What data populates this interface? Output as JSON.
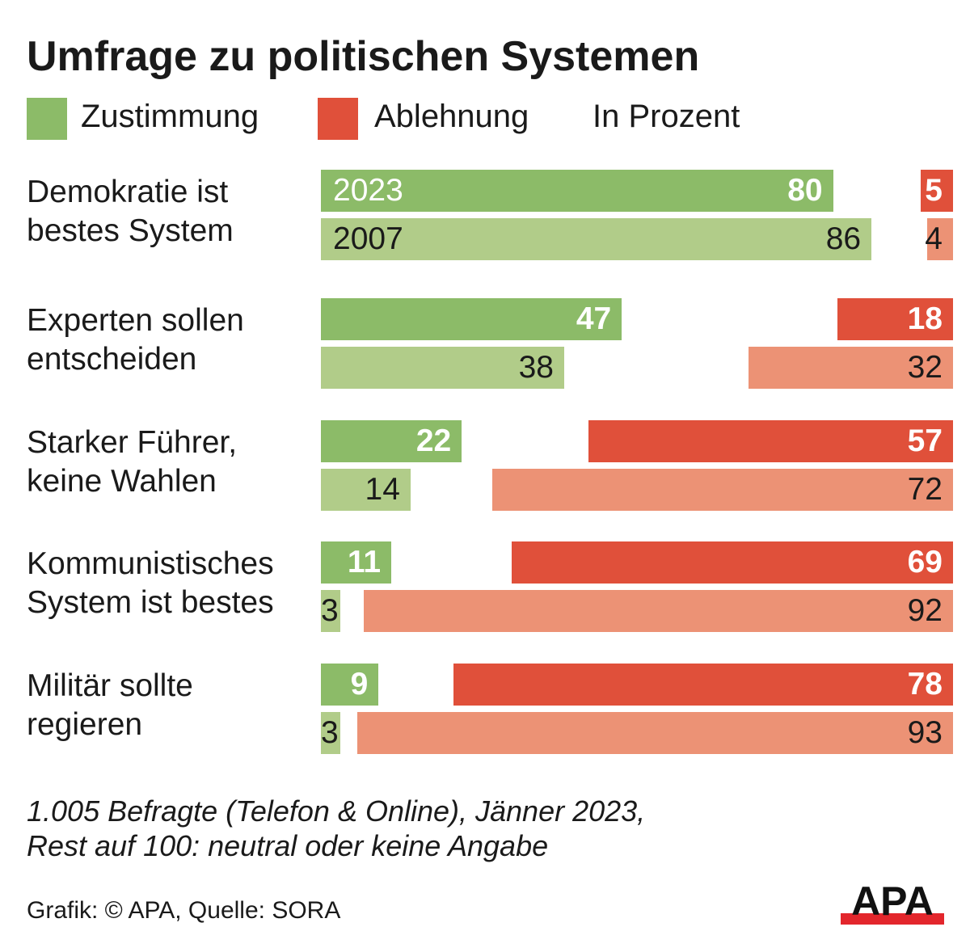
{
  "title": "Umfrage zu politischen Systemen",
  "legend": [
    {
      "label": "Zustimmung",
      "color": "#8cbb68"
    },
    {
      "label": "Ablehnung",
      "color": "#e0503a"
    }
  ],
  "unit_label": "In Prozent",
  "chart_data": {
    "type": "bar",
    "orientation": "horizontal",
    "title": "Umfrage zu politischen Systemen",
    "unit": "In Prozent",
    "years": [
      "2023",
      "2007"
    ],
    "categories": [
      "Demokratie ist\nbestes System",
      "Experten sollen\nentscheiden",
      "Starker Führer,\nkeine Wahlen",
      "Kommunistisches\nSystem ist bestes",
      "Militär sollte\nregieren"
    ],
    "series": [
      {
        "name": "Zustimmung",
        "year": "2023",
        "color": "#8cbb68",
        "values": [
          80,
          47,
          22,
          11,
          9
        ]
      },
      {
        "name": "Zustimmung",
        "year": "2007",
        "color": "#b1cc89",
        "values": [
          86,
          38,
          14,
          3,
          3
        ]
      },
      {
        "name": "Ablehnung",
        "year": "2023",
        "color": "#e0503a",
        "values": [
          5,
          18,
          57,
          69,
          78
        ]
      },
      {
        "name": "Ablehnung",
        "year": "2007",
        "color": "#ec9275",
        "values": [
          4,
          32,
          72,
          92,
          93
        ]
      }
    ],
    "xlim": [
      0,
      100
    ]
  },
  "footnote": "1.005 Befragte (Telefon & Online), Jänner 2023,\nRest auf 100: neutral oder keine Angabe",
  "source": "Grafik: © APA, Quelle: SORA",
  "logo_text": "APA"
}
